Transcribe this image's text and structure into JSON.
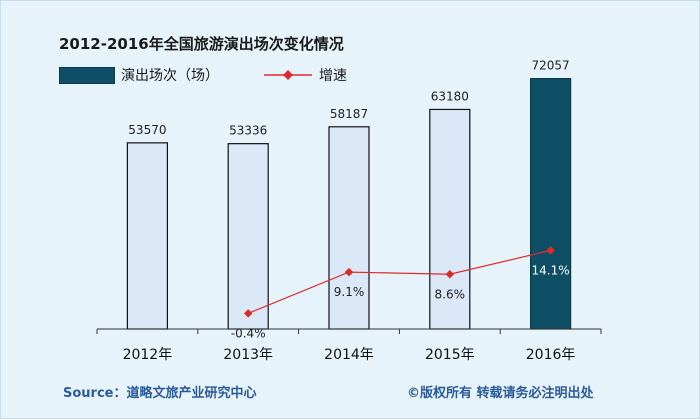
{
  "title": "2012-2016年全国旅游演出场次变化情况",
  "legend": {
    "bar_label": "演出场次（场）",
    "line_label": "增速"
  },
  "footer": {
    "source": "Source：道略文旅产业研究中心",
    "copyright": "©版权所有  转载请务必注明出处"
  },
  "colors": {
    "bar_fill": "#dbe8f7",
    "bar_highlight": "#0e4f66",
    "line": "#dd2b2b",
    "axis": "#333333"
  },
  "chart_data": {
    "type": "bar",
    "categories": [
      "2012年",
      "2013年",
      "2014年",
      "2015年",
      "2016年"
    ],
    "series": [
      {
        "name": "演出场次（场）",
        "type": "bar",
        "values": [
          53570,
          53336,
          58187,
          63180,
          72057
        ],
        "labels": [
          "53570",
          "53336",
          "58187",
          "63180",
          "72057"
        ]
      },
      {
        "name": "增速",
        "type": "line",
        "values": [
          null,
          -0.4,
          9.1,
          8.6,
          14.1
        ],
        "labels": [
          "",
          "-0.4%",
          "9.1%",
          "8.6%",
          "14.1%"
        ]
      }
    ],
    "highlight_index": 4,
    "bar_ylim": [
      0,
      80000
    ],
    "line_ylim": [
      -4,
      60
    ],
    "grid": false,
    "legend_position": "top-left"
  }
}
